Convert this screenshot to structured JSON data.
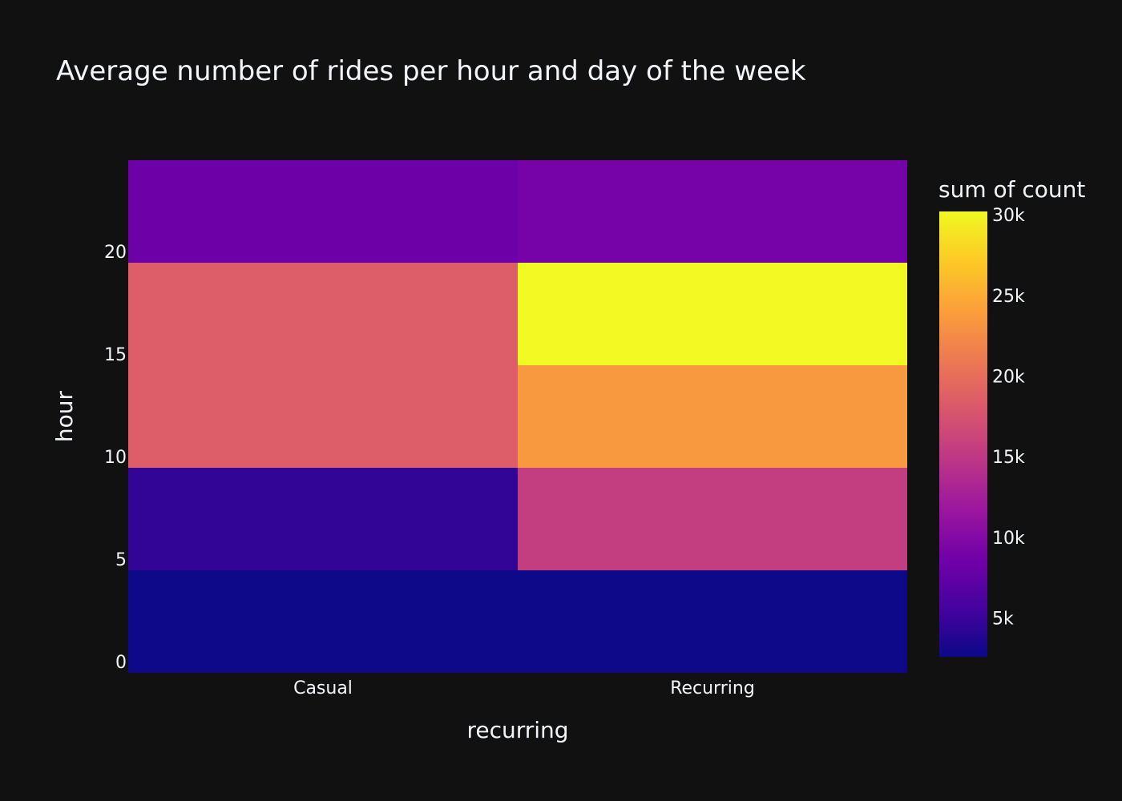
{
  "chart_data": {
    "type": "heatmap",
    "title": "Average number of rides per hour and day of the week",
    "xlabel": "recurring",
    "ylabel": "hour",
    "categories": [
      "Casual",
      "Recurring"
    ],
    "y_bins": [
      {
        "from": 0,
        "to": 5
      },
      {
        "from": 5,
        "to": 10
      },
      {
        "from": 10,
        "to": 15
      },
      {
        "from": 15,
        "to": 20
      },
      {
        "from": 20,
        "to": 25
      }
    ],
    "values": [
      [
        2600,
        4600,
        18500,
        18500,
        8300
      ],
      [
        2600,
        15500,
        23500,
        30200,
        9000
      ]
    ],
    "ylim": [
      -0.5,
      24.5
    ],
    "y_ticks": [
      0,
      5,
      10,
      15,
      20
    ],
    "colorbar": {
      "title": "sum of count",
      "range": [
        2600,
        30200
      ],
      "ticks": [
        5000,
        10000,
        15000,
        20000,
        25000,
        30000
      ],
      "tick_labels": [
        "5k",
        "10k",
        "15k",
        "20k",
        "25k",
        "30k"
      ],
      "colorscale": [
        "#0d0887",
        "#46039f",
        "#7201a8",
        "#9c179e",
        "#bd3786",
        "#d8576b",
        "#ed7953",
        "#fb9f3a",
        "#fdca26",
        "#f0f921"
      ]
    },
    "grid": false,
    "legend": "right"
  }
}
